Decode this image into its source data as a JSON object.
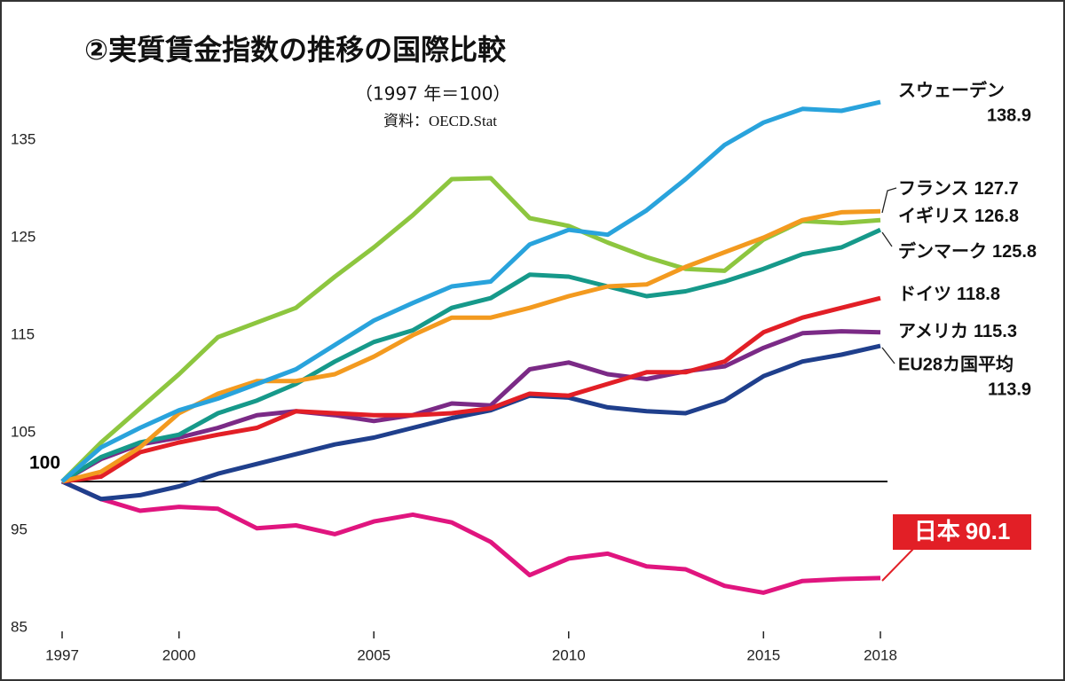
{
  "chart_data": {
    "type": "line",
    "title": "②実質賃金指数の推移の国際比較",
    "subtitle": "（1997 年＝100）",
    "source": "資料：OECD.Stat",
    "x": [
      1997,
      1998,
      1999,
      2000,
      2001,
      2002,
      2003,
      2004,
      2005,
      2006,
      2007,
      2008,
      2009,
      2010,
      2011,
      2012,
      2013,
      2014,
      2015,
      2016,
      2017,
      2018
    ],
    "xlim": [
      1997,
      2018
    ],
    "xticks": [
      1997,
      2000,
      2005,
      2010,
      2015,
      2018
    ],
    "ylim": [
      85,
      140
    ],
    "yticks": [
      85,
      95,
      105,
      115,
      125,
      135
    ],
    "hline": 100,
    "grid": false,
    "series": [
      {
        "name": "日本",
        "color": "#e0157f",
        "values": [
          100,
          98.2,
          97,
          97.4,
          97.2,
          95.2,
          95.5,
          94.6,
          95.9,
          96.6,
          95.8,
          93.8,
          90.4,
          92.1,
          92.6,
          91.3,
          91,
          89.3,
          88.6,
          89.8,
          90,
          90.1
        ]
      },
      {
        "name": "EU28カ国平均",
        "color": "#1f3f8c",
        "values": [
          100,
          98.2,
          98.6,
          99.5,
          100.8,
          101.8,
          102.8,
          103.8,
          104.5,
          105.5,
          106.5,
          107.3,
          108.8,
          108.6,
          107.6,
          107.2,
          107,
          108.3,
          110.8,
          112.3,
          113,
          113.9
        ]
      },
      {
        "name": "アメリカ",
        "color": "#7b2a86",
        "values": [
          100,
          102.3,
          103.8,
          104.5,
          105.5,
          106.8,
          107.2,
          106.8,
          106.2,
          106.8,
          108,
          107.8,
          111.5,
          112.2,
          111,
          110.5,
          111.3,
          111.8,
          113.7,
          115.2,
          115.4,
          115.3
        ]
      },
      {
        "name": "ドイツ",
        "color": "#e21f26",
        "values": [
          100,
          100.5,
          103,
          104,
          104.8,
          105.5,
          107.2,
          107,
          106.8,
          106.8,
          107,
          107.5,
          109,
          108.8,
          110,
          111.2,
          111.2,
          112.3,
          115.3,
          116.8,
          117.8,
          118.8
        ]
      },
      {
        "name": "デンマーク",
        "color": "#16998a",
        "values": [
          100,
          102.5,
          104,
          104.8,
          107,
          108.3,
          110,
          112.3,
          114.3,
          115.5,
          117.8,
          118.8,
          121.2,
          121,
          120,
          119,
          119.5,
          120.5,
          121.8,
          123.3,
          124,
          125.8
        ]
      },
      {
        "name": "イギリス",
        "color": "#8dc63f",
        "values": [
          100,
          104,
          107.5,
          111,
          114.8,
          116.3,
          117.8,
          121,
          124,
          127.3,
          131,
          131.1,
          127,
          126.2,
          124.5,
          123,
          121.8,
          121.6,
          124.8,
          126.7,
          126.5,
          126.8
        ]
      },
      {
        "name": "フランス",
        "color": "#f39a1f",
        "values": [
          100,
          101,
          103.5,
          107,
          109,
          110.3,
          110.3,
          111,
          112.8,
          115,
          116.8,
          116.8,
          117.8,
          119,
          120,
          120.2,
          122,
          123.5,
          125,
          126.8,
          127.6,
          127.7
        ]
      },
      {
        "name": "スウェーデン",
        "color": "#29a3dc",
        "values": [
          100,
          103.5,
          105.5,
          107.3,
          108.5,
          110,
          111.5,
          114,
          116.5,
          118.3,
          120,
          120.5,
          124.3,
          125.8,
          125.3,
          127.8,
          131,
          134.5,
          136.8,
          138.2,
          138,
          138.9
        ]
      }
    ]
  }
}
